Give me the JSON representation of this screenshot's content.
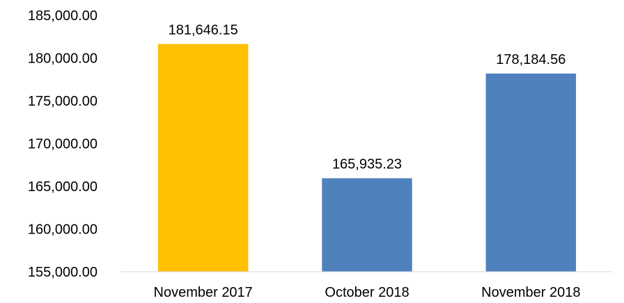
{
  "chart_data": {
    "type": "bar",
    "title": "",
    "xlabel": "",
    "ylabel": "",
    "categories": [
      "November 2017",
      "October 2018",
      "November 2018"
    ],
    "values": [
      181646.15,
      165935.23,
      178184.56
    ],
    "data_labels": [
      "181,646.15",
      "165,935.23",
      "178,184.56"
    ],
    "bar_colors": [
      "#FFC000",
      "#4F81BD",
      "#4F81BD"
    ],
    "ylim": [
      155000,
      185000
    ],
    "y_ticks": [
      155000,
      160000,
      165000,
      170000,
      175000,
      180000,
      185000
    ],
    "y_tick_labels": [
      "155,000.00",
      "160,000.00",
      "165,000.00",
      "170,000.00",
      "175,000.00",
      "180,000.00",
      "185,000.00"
    ],
    "grid": false,
    "legend": "none"
  }
}
